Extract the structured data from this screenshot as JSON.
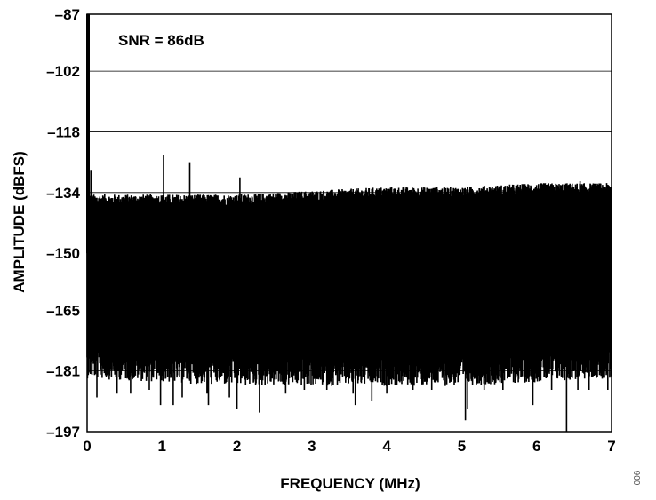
{
  "chart_data": {
    "type": "line",
    "title": "",
    "xlabel": "FREQUENCY (MHz)",
    "ylabel": "AMPLITUDE (dBFS)",
    "xlim": [
      0,
      7
    ],
    "ylim": [
      -197,
      -87
    ],
    "x_ticks": [
      0,
      1,
      2,
      3,
      4,
      5,
      6,
      7
    ],
    "x_tick_labels": [
      "0",
      "1",
      "2",
      "3",
      "4",
      "5",
      "6",
      "7"
    ],
    "y_ticks": [
      -87,
      -102,
      -118,
      -134,
      -150,
      -165,
      -181,
      -197
    ],
    "y_tick_labels": [
      "–87",
      "–102",
      "–118",
      "–134",
      "–150",
      "–165",
      "–181",
      "–197"
    ],
    "grid": true,
    "annotation": "SNR = 86dB",
    "series": [
      {
        "noise_floor_top": [
          [
            0.0,
            -136
          ],
          [
            1.0,
            -136
          ],
          [
            2.0,
            -136
          ],
          [
            3.0,
            -135
          ],
          [
            4.0,
            -134
          ],
          [
            5.0,
            -134
          ],
          [
            6.0,
            -133
          ],
          [
            7.0,
            -133
          ]
        ],
        "noise_floor_bottom": [
          [
            0.0,
            -175
          ],
          [
            1.0,
            -176
          ],
          [
            2.0,
            -177
          ],
          [
            3.0,
            -177
          ],
          [
            4.0,
            -177
          ],
          [
            5.0,
            -177
          ],
          [
            6.0,
            -176
          ],
          [
            7.0,
            -175
          ]
        ],
        "peaks": [
          {
            "x": 0.02,
            "y": -87
          },
          {
            "x": 0.05,
            "y": -128
          },
          {
            "x": 1.02,
            "y": -124
          },
          {
            "x": 1.37,
            "y": -126
          },
          {
            "x": 2.04,
            "y": -130
          },
          {
            "x": 6.58,
            "y": -131
          }
        ],
        "dips": [
          {
            "x": 0.13,
            "y": -188
          },
          {
            "x": 0.4,
            "y": -187
          },
          {
            "x": 0.58,
            "y": -187
          },
          {
            "x": 0.83,
            "y": -186
          },
          {
            "x": 0.98,
            "y": -190
          },
          {
            "x": 1.15,
            "y": -190
          },
          {
            "x": 1.27,
            "y": -188
          },
          {
            "x": 1.6,
            "y": -187
          },
          {
            "x": 1.62,
            "y": -190
          },
          {
            "x": 1.9,
            "y": -188
          },
          {
            "x": 2.0,
            "y": -191
          },
          {
            "x": 2.3,
            "y": -192
          },
          {
            "x": 2.65,
            "y": -187
          },
          {
            "x": 2.9,
            "y": -186
          },
          {
            "x": 3.2,
            "y": -186
          },
          {
            "x": 3.55,
            "y": -187
          },
          {
            "x": 3.58,
            "y": -190
          },
          {
            "x": 3.8,
            "y": -189
          },
          {
            "x": 4.0,
            "y": -187
          },
          {
            "x": 4.35,
            "y": -186
          },
          {
            "x": 4.6,
            "y": -186
          },
          {
            "x": 5.05,
            "y": -194
          },
          {
            "x": 5.08,
            "y": -191
          },
          {
            "x": 5.3,
            "y": -186
          },
          {
            "x": 5.55,
            "y": -186
          },
          {
            "x": 5.95,
            "y": -190
          },
          {
            "x": 6.2,
            "y": -186
          },
          {
            "x": 6.4,
            "y": -199
          },
          {
            "x": 6.55,
            "y": -186
          },
          {
            "x": 6.7,
            "y": -186
          },
          {
            "x": 6.95,
            "y": -186
          }
        ]
      }
    ]
  },
  "figure_id": "006",
  "colors": {
    "trace": "#000000",
    "grid": "#000000",
    "background": "#ffffff"
  }
}
